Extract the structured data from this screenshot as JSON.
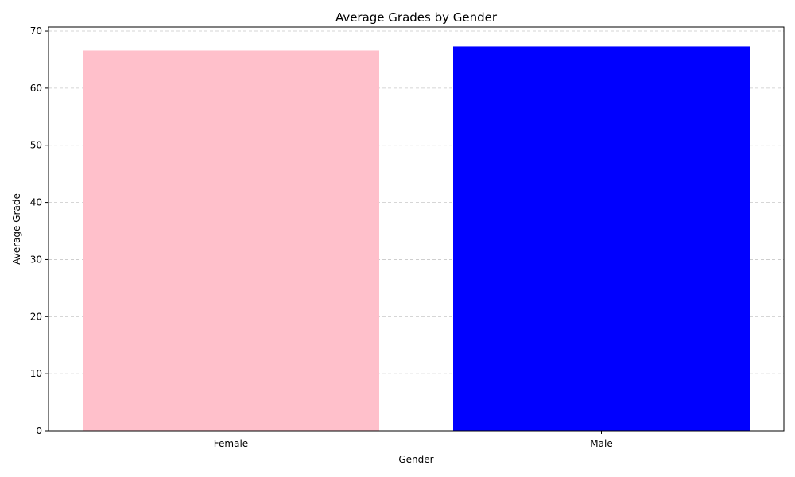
{
  "chart_data": {
    "type": "bar",
    "title": "Average Grades by Gender",
    "xlabel": "Gender",
    "ylabel": "Average Grade",
    "categories": [
      "Female",
      "Male"
    ],
    "values": [
      66.6,
      67.3
    ],
    "bar_colors": [
      "#ffc0cb",
      "#0000ff"
    ],
    "ylim": [
      0,
      70.7
    ],
    "yticks": [
      0,
      10,
      20,
      30,
      40,
      50,
      60,
      70
    ],
    "grid": {
      "axis": "y",
      "style": "dashed",
      "color": "#c8c8c8"
    }
  }
}
